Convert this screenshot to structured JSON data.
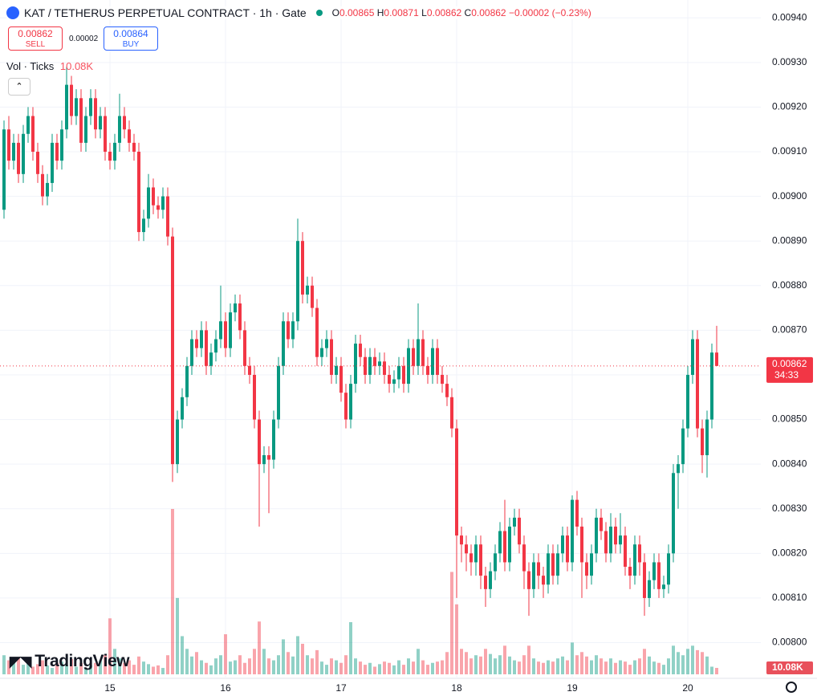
{
  "chart_data": {
    "type": "candlestick",
    "title": "KAT / TETHERUS PERPETUAL CONTRACT · 1h · Gate",
    "ohlc_labels": [
      "O",
      "H",
      "L",
      "C"
    ],
    "change": "−0.00002 (−0.23%)",
    "bid": "0.00862",
    "sell_label": "SELL",
    "spread": "0.00002",
    "ask": "0.00864",
    "buy_label": "BUY",
    "volume_name": "Vol · Ticks",
    "volume_last_label": "10.08K",
    "countdown": "34:33",
    "logo": "TradingView",
    "up_color": "#089981",
    "down_color": "#f23645",
    "grid": true,
    "ylim": [
      0.00792,
      0.00944
    ],
    "yticks": [
      {
        "value": 0.008,
        "label": "0.00800"
      },
      {
        "value": 0.0081,
        "label": "0.00810"
      },
      {
        "value": 0.0082,
        "label": "0.00820"
      },
      {
        "value": 0.0083,
        "label": "0.00830"
      },
      {
        "value": 0.0084,
        "label": "0.00840"
      },
      {
        "value": 0.0085,
        "label": "0.00850"
      },
      {
        "value": 0.0086,
        "label": "0.00860"
      },
      {
        "value": 0.0087,
        "label": "0.00870"
      },
      {
        "value": 0.0088,
        "label": "0.00880"
      },
      {
        "value": 0.0089,
        "label": "0.00890"
      },
      {
        "value": 0.009,
        "label": "0.00900"
      },
      {
        "value": 0.0091,
        "label": "0.00910"
      },
      {
        "value": 0.0092,
        "label": "0.00920"
      },
      {
        "value": 0.0093,
        "label": "0.00930"
      },
      {
        "value": 0.0094,
        "label": "0.00940"
      }
    ],
    "categories": [
      null,
      null,
      null,
      null,
      null,
      null,
      null,
      null,
      null,
      null,
      null,
      null,
      null,
      null,
      null,
      null,
      null,
      null,
      null,
      null,
      null,
      null,
      "15",
      null,
      null,
      null,
      null,
      null,
      null,
      null,
      null,
      null,
      null,
      null,
      null,
      null,
      null,
      null,
      null,
      null,
      null,
      null,
      null,
      null,
      null,
      null,
      "16",
      null,
      null,
      null,
      null,
      null,
      null,
      null,
      null,
      null,
      null,
      null,
      null,
      null,
      null,
      null,
      null,
      null,
      null,
      null,
      null,
      null,
      null,
      null,
      "17",
      null,
      null,
      null,
      null,
      null,
      null,
      null,
      null,
      null,
      null,
      null,
      null,
      null,
      null,
      null,
      null,
      null,
      null,
      null,
      null,
      null,
      null,
      null,
      "18",
      null,
      null,
      null,
      null,
      null,
      null,
      null,
      null,
      null,
      null,
      null,
      null,
      null,
      null,
      null,
      null,
      null,
      null,
      null,
      null,
      null,
      null,
      null,
      "19",
      null,
      null,
      null,
      null,
      null,
      null,
      null,
      null,
      null,
      null,
      null,
      null,
      null,
      null,
      null,
      null,
      null,
      null,
      null,
      null,
      null,
      null,
      null,
      "20",
      null,
      null,
      null,
      null,
      null,
      null
    ],
    "open": [
      0.00897,
      0.00915,
      0.00908,
      0.00912,
      0.00905,
      0.00914,
      0.00918,
      0.0091,
      0.00905,
      0.009,
      0.00903,
      0.00912,
      0.00908,
      0.00915,
      0.00925,
      0.00918,
      0.00922,
      0.00912,
      0.00918,
      0.00922,
      0.00915,
      0.00918,
      0.0091,
      0.00908,
      0.00912,
      0.00918,
      0.00915,
      0.00912,
      0.0091,
      0.00892,
      0.00895,
      0.00902,
      0.00898,
      0.00897,
      0.009,
      0.00891,
      0.0084,
      0.0085,
      0.00855,
      0.00862,
      0.00868,
      0.00866,
      0.0087,
      0.00862,
      0.00865,
      0.00868,
      0.00872,
      0.00866,
      0.00874,
      0.00876,
      0.0087,
      0.00862,
      0.0086,
      0.0085,
      0.0084,
      0.00842,
      0.00841,
      0.0085,
      0.00862,
      0.00872,
      0.00868,
      0.00872,
      0.0089,
      0.00878,
      0.0088,
      0.00875,
      0.00864,
      0.00866,
      0.00868,
      0.0086,
      0.00862,
      0.00856,
      0.0085,
      0.00858,
      0.00867,
      0.00864,
      0.0086,
      0.00864,
      0.00862,
      0.00863,
      0.0086,
      0.00858,
      0.00859,
      0.00862,
      0.00858,
      0.00866,
      0.00862,
      0.00868,
      0.00862,
      0.0086,
      0.00866,
      0.0086,
      0.00858,
      0.00855,
      0.00848,
      0.00824,
      0.00822,
      0.0082,
      0.00818,
      0.00822,
      0.00815,
      0.00812,
      0.00816,
      0.0082,
      0.00825,
      0.00818,
      0.00826,
      0.00828,
      0.00822,
      0.00816,
      0.00812,
      0.00818,
      0.00815,
      0.00813,
      0.0082,
      0.00815,
      0.0082,
      0.00824,
      0.00818,
      0.00832,
      0.00826,
      0.00818,
      0.00815,
      0.0082,
      0.00828,
      0.00825,
      0.0082,
      0.00826,
      0.00822,
      0.00824,
      0.00817,
      0.00815,
      0.00822,
      0.00818,
      0.0081,
      0.00814,
      0.00818,
      0.00812,
      0.00813,
      0.0082,
      0.00838,
      0.0084,
      0.00848,
      0.0086,
      0.00868,
      0.00848,
      0.00842,
      0.0085,
      0.00865
    ],
    "high": [
      0.00917,
      0.00918,
      0.00914,
      0.00914,
      0.00916,
      0.0092,
      0.0092,
      0.00912,
      0.00907,
      0.00905,
      0.00914,
      0.00914,
      0.00917,
      0.00929,
      0.00927,
      0.00924,
      0.00924,
      0.0092,
      0.00924,
      0.00924,
      0.0092,
      0.0092,
      0.00912,
      0.00914,
      0.00923,
      0.0092,
      0.00917,
      0.00914,
      0.00912,
      0.00897,
      0.00905,
      0.00904,
      0.009,
      0.00902,
      0.00902,
      0.00893,
      0.00852,
      0.00857,
      0.00864,
      0.0087,
      0.0087,
      0.00872,
      0.00872,
      0.00867,
      0.0087,
      0.0088,
      0.00874,
      0.00876,
      0.00878,
      0.00878,
      0.00872,
      0.00864,
      0.00862,
      0.00852,
      0.00844,
      0.00844,
      0.00852,
      0.00864,
      0.00874,
      0.00874,
      0.00874,
      0.00895,
      0.00892,
      0.00882,
      0.00882,
      0.00877,
      0.00868,
      0.0087,
      0.0087,
      0.00864,
      0.00864,
      0.00858,
      0.0086,
      0.00869,
      0.00869,
      0.00866,
      0.00866,
      0.00866,
      0.00865,
      0.00865,
      0.00862,
      0.00861,
      0.00864,
      0.00864,
      0.00868,
      0.00868,
      0.00876,
      0.0087,
      0.00864,
      0.00868,
      0.00868,
      0.00862,
      0.0086,
      0.00857,
      0.0085,
      0.00826,
      0.00824,
      0.00822,
      0.00824,
      0.00824,
      0.00817,
      0.00818,
      0.00822,
      0.00827,
      0.00832,
      0.00828,
      0.0083,
      0.0083,
      0.00824,
      0.00818,
      0.0082,
      0.0082,
      0.00817,
      0.00822,
      0.00822,
      0.00822,
      0.00826,
      0.00826,
      0.00833,
      0.00834,
      0.00828,
      0.0082,
      0.00822,
      0.0083,
      0.0083,
      0.00827,
      0.00829,
      0.00828,
      0.00829,
      0.00826,
      0.00819,
      0.00824,
      0.00824,
      0.0082,
      0.00816,
      0.0082,
      0.0082,
      0.00815,
      0.00822,
      0.0084,
      0.00842,
      0.0085,
      0.00862,
      0.0087,
      0.0087,
      0.0085,
      0.00852,
      0.00867,
      0.00871
    ],
    "low": [
      0.00895,
      0.00906,
      0.00906,
      0.00903,
      0.00903,
      0.00912,
      0.00908,
      0.00903,
      0.00898,
      0.00898,
      0.00901,
      0.00906,
      0.00906,
      0.00913,
      0.00916,
      0.00916,
      0.0091,
      0.0091,
      0.00916,
      0.00913,
      0.00913,
      0.00908,
      0.00906,
      0.00906,
      0.0091,
      0.00913,
      0.0091,
      0.00908,
      0.0089,
      0.0089,
      0.00893,
      0.00896,
      0.00895,
      0.00895,
      0.00889,
      0.00836,
      0.00838,
      0.00848,
      0.00853,
      0.0086,
      0.00864,
      0.00864,
      0.0086,
      0.0086,
      0.00863,
      0.00866,
      0.00864,
      0.00864,
      0.00872,
      0.00868,
      0.0086,
      0.00858,
      0.00848,
      0.00826,
      0.00838,
      0.00829,
      0.00839,
      0.00848,
      0.0086,
      0.00866,
      0.00866,
      0.0087,
      0.00876,
      0.00876,
      0.00873,
      0.00862,
      0.00862,
      0.00864,
      0.00858,
      0.00858,
      0.00854,
      0.00848,
      0.00848,
      0.00856,
      0.00862,
      0.00858,
      0.00858,
      0.0086,
      0.0086,
      0.00858,
      0.00856,
      0.00856,
      0.00857,
      0.00856,
      0.00856,
      0.0086,
      0.0086,
      0.0086,
      0.00858,
      0.00858,
      0.00858,
      0.00856,
      0.00853,
      0.00846,
      0.0081,
      0.00818,
      0.00816,
      0.00815,
      0.00815,
      0.00812,
      0.00808,
      0.0081,
      0.00814,
      0.00818,
      0.00816,
      0.00816,
      0.00824,
      0.0082,
      0.00812,
      0.00806,
      0.0081,
      0.00812,
      0.0081,
      0.00811,
      0.00813,
      0.00813,
      0.00818,
      0.00816,
      0.00816,
      0.00824,
      0.0081,
      0.00812,
      0.00813,
      0.00818,
      0.00823,
      0.00818,
      0.00818,
      0.0082,
      0.0082,
      0.00815,
      0.00812,
      0.00813,
      0.00815,
      0.00806,
      0.00808,
      0.00812,
      0.0081,
      0.0081,
      0.00811,
      0.00818,
      0.0083,
      0.00838,
      0.00846,
      0.00858,
      0.00846,
      0.00838,
      0.00837,
      0.00848,
      0.00862
    ],
    "close": [
      0.00915,
      0.00908,
      0.00912,
      0.00905,
      0.00914,
      0.00918,
      0.0091,
      0.00905,
      0.009,
      0.00903,
      0.00912,
      0.00908,
      0.00915,
      0.00925,
      0.00918,
      0.00922,
      0.00912,
      0.00918,
      0.00922,
      0.00915,
      0.00918,
      0.0091,
      0.00908,
      0.00912,
      0.00918,
      0.00915,
      0.00912,
      0.0091,
      0.00892,
      0.00895,
      0.00902,
      0.00898,
      0.00897,
      0.009,
      0.00891,
      0.0084,
      0.0085,
      0.00855,
      0.00862,
      0.00868,
      0.00866,
      0.0087,
      0.00862,
      0.00865,
      0.00868,
      0.00872,
      0.00866,
      0.00874,
      0.00876,
      0.0087,
      0.00862,
      0.0086,
      0.0085,
      0.0084,
      0.00842,
      0.00841,
      0.0085,
      0.00862,
      0.00872,
      0.00868,
      0.00872,
      0.0089,
      0.00878,
      0.0088,
      0.00875,
      0.00864,
      0.00866,
      0.00868,
      0.0086,
      0.00862,
      0.00856,
      0.0085,
      0.00858,
      0.00867,
      0.00864,
      0.0086,
      0.00864,
      0.00862,
      0.00863,
      0.0086,
      0.00858,
      0.00859,
      0.00862,
      0.00858,
      0.00866,
      0.00862,
      0.00868,
      0.00862,
      0.0086,
      0.00866,
      0.0086,
      0.00858,
      0.00855,
      0.00848,
      0.00824,
      0.00822,
      0.0082,
      0.00818,
      0.00822,
      0.00815,
      0.00812,
      0.00816,
      0.0082,
      0.00825,
      0.00818,
      0.00826,
      0.00828,
      0.00822,
      0.00816,
      0.00812,
      0.00818,
      0.00815,
      0.00813,
      0.0082,
      0.00815,
      0.0082,
      0.00824,
      0.00818,
      0.00832,
      0.00826,
      0.00818,
      0.00815,
      0.0082,
      0.00828,
      0.00825,
      0.0082,
      0.00826,
      0.00822,
      0.00824,
      0.00817,
      0.00815,
      0.00822,
      0.00818,
      0.0081,
      0.00814,
      0.00818,
      0.00812,
      0.00813,
      0.0082,
      0.00838,
      0.0084,
      0.00848,
      0.0086,
      0.00868,
      0.00848,
      0.00842,
      0.0085,
      0.00865,
      0.00862
    ],
    "volume": [
      30000,
      22000,
      18000,
      25000,
      15000,
      20000,
      12000,
      16000,
      22000,
      14000,
      10000,
      18000,
      20000,
      15000,
      24000,
      12000,
      18000,
      10000,
      14000,
      18000,
      22000,
      30000,
      88000,
      40000,
      25000,
      18000,
      22000,
      15000,
      28000,
      20000,
      16000,
      12000,
      14000,
      10000,
      30000,
      260000,
      120000,
      60000,
      40000,
      28000,
      35000,
      22000,
      18000,
      14000,
      25000,
      30000,
      63000,
      20000,
      22000,
      30000,
      18000,
      25000,
      40000,
      83000,
      40000,
      25000,
      22000,
      30000,
      55000,
      35000,
      28000,
      60000,
      48000,
      30000,
      25000,
      38000,
      20000,
      15000,
      25000,
      22000,
      18000,
      30000,
      82000,
      25000,
      20000,
      15000,
      18000,
      12000,
      16000,
      20000,
      18000,
      14000,
      22000,
      15000,
      25000,
      20000,
      40000,
      22000,
      15000,
      18000,
      20000,
      22000,
      35000,
      161000,
      110000,
      40000,
      35000,
      25000,
      30000,
      28000,
      40000,
      32000,
      25000,
      30000,
      45000,
      28000,
      22000,
      20000,
      30000,
      45000,
      25000,
      20000,
      18000,
      22000,
      20000,
      25000,
      28000,
      22000,
      50000,
      30000,
      35000,
      28000,
      22000,
      30000,
      25000,
      20000,
      25000,
      18000,
      22000,
      20000,
      15000,
      22000,
      25000,
      40000,
      28000,
      20000,
      18000,
      15000,
      25000,
      45000,
      35000,
      30000,
      40000,
      45000,
      38000,
      35000,
      28000,
      12000,
      10080
    ]
  }
}
